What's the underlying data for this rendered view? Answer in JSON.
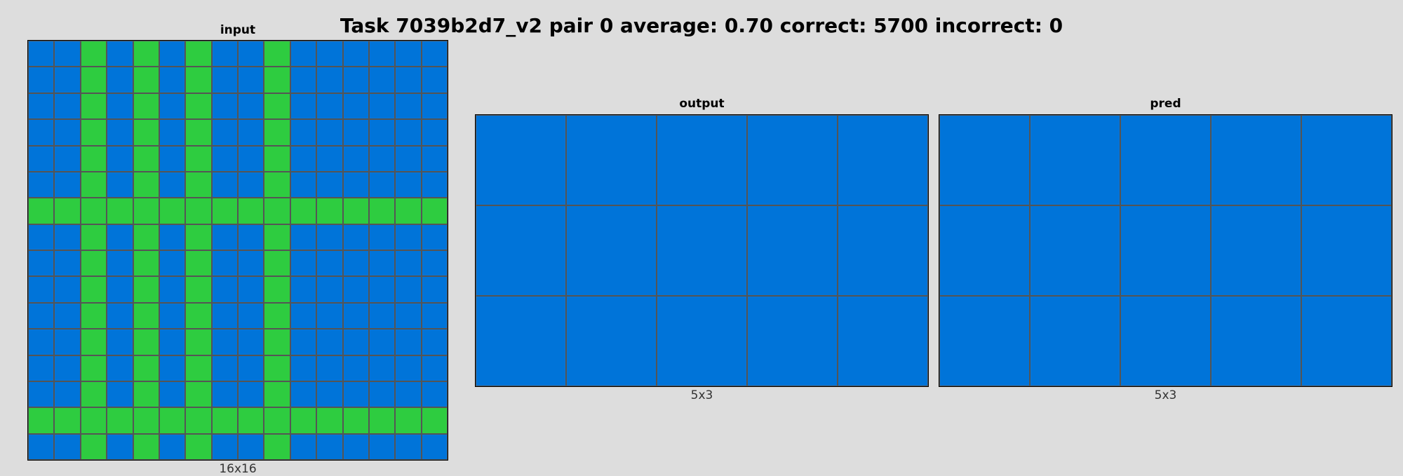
{
  "title": "Task 7039b2d7_v2 pair 0 average: 0.70 correct: 5700 incorrect: 0",
  "palette": {
    "1": "#0074d9",
    "3": "#2ecc40"
  },
  "panels": {
    "input": {
      "label": "input",
      "dims": "16x16",
      "rows": [
        [
          1,
          1,
          3,
          1,
          3,
          1,
          3,
          1,
          1,
          3,
          1,
          1,
          1,
          1,
          1,
          1
        ],
        [
          1,
          1,
          3,
          1,
          3,
          1,
          3,
          1,
          1,
          3,
          1,
          1,
          1,
          1,
          1,
          1
        ],
        [
          1,
          1,
          3,
          1,
          3,
          1,
          3,
          1,
          1,
          3,
          1,
          1,
          1,
          1,
          1,
          1
        ],
        [
          1,
          1,
          3,
          1,
          3,
          1,
          3,
          1,
          1,
          3,
          1,
          1,
          1,
          1,
          1,
          1
        ],
        [
          1,
          1,
          3,
          1,
          3,
          1,
          3,
          1,
          1,
          3,
          1,
          1,
          1,
          1,
          1,
          1
        ],
        [
          1,
          1,
          3,
          1,
          3,
          1,
          3,
          1,
          1,
          3,
          1,
          1,
          1,
          1,
          1,
          1
        ],
        [
          3,
          3,
          3,
          3,
          3,
          3,
          3,
          3,
          3,
          3,
          3,
          3,
          3,
          3,
          3,
          3
        ],
        [
          1,
          1,
          3,
          1,
          3,
          1,
          3,
          1,
          1,
          3,
          1,
          1,
          1,
          1,
          1,
          1
        ],
        [
          1,
          1,
          3,
          1,
          3,
          1,
          3,
          1,
          1,
          3,
          1,
          1,
          1,
          1,
          1,
          1
        ],
        [
          1,
          1,
          3,
          1,
          3,
          1,
          3,
          1,
          1,
          3,
          1,
          1,
          1,
          1,
          1,
          1
        ],
        [
          1,
          1,
          3,
          1,
          3,
          1,
          3,
          1,
          1,
          3,
          1,
          1,
          1,
          1,
          1,
          1
        ],
        [
          1,
          1,
          3,
          1,
          3,
          1,
          3,
          1,
          1,
          3,
          1,
          1,
          1,
          1,
          1,
          1
        ],
        [
          1,
          1,
          3,
          1,
          3,
          1,
          3,
          1,
          1,
          3,
          1,
          1,
          1,
          1,
          1,
          1
        ],
        [
          1,
          1,
          3,
          1,
          3,
          1,
          3,
          1,
          1,
          3,
          1,
          1,
          1,
          1,
          1,
          1
        ],
        [
          3,
          3,
          3,
          3,
          3,
          3,
          3,
          3,
          3,
          3,
          3,
          3,
          3,
          3,
          3,
          3
        ],
        [
          1,
          1,
          3,
          1,
          3,
          1,
          3,
          1,
          1,
          3,
          1,
          1,
          1,
          1,
          1,
          1
        ]
      ]
    },
    "output": {
      "label": "output",
      "dims": "5x3",
      "rows": [
        [
          1,
          1,
          1,
          1,
          1
        ],
        [
          1,
          1,
          1,
          1,
          1
        ],
        [
          1,
          1,
          1,
          1,
          1
        ]
      ]
    },
    "pred": {
      "label": "pred",
      "dims": "5x3",
      "rows": [
        [
          1,
          1,
          1,
          1,
          1
        ],
        [
          1,
          1,
          1,
          1,
          1
        ],
        [
          1,
          1,
          1,
          1,
          1
        ]
      ]
    }
  }
}
